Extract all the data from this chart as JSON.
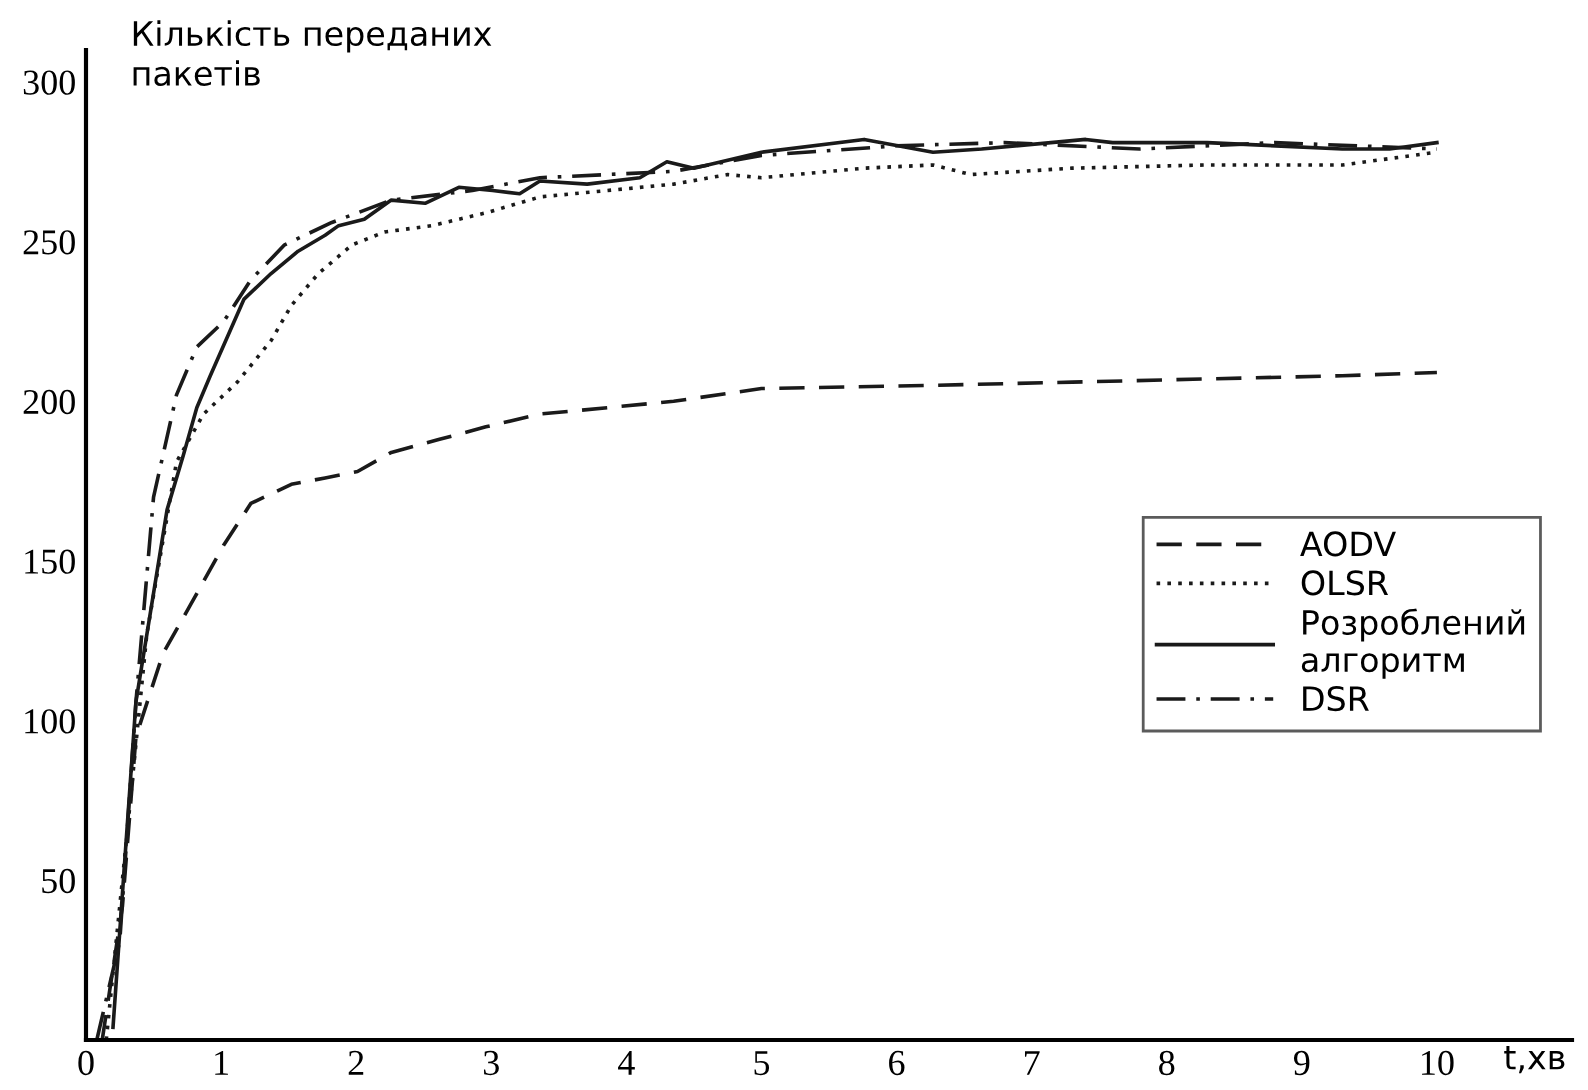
{
  "chart_data": {
    "type": "line",
    "xlabel": "t,хв",
    "ylabel": "Кількість переданих\nпакетів",
    "xlim": [
      0,
      11
    ],
    "ylim": [
      0,
      310
    ],
    "xticks": [
      0,
      1,
      2,
      3,
      4,
      5,
      6,
      7,
      8,
      9,
      10
    ],
    "yticks": [
      50,
      100,
      150,
      200,
      250,
      300
    ],
    "grid": false,
    "legend": "right",
    "marker": "none",
    "series": [
      {
        "name": "AODV",
        "color": "#1a1a1a",
        "line_style": "dashed",
        "x": [
          0.12,
          0.27,
          0.37,
          0.57,
          0.77,
          1.02,
          1.22,
          1.52,
          1.77,
          2.01,
          2.26,
          2.61,
          2.96,
          3.36,
          3.86,
          4.35,
          5,
          6.27,
          7.3,
          8.3,
          9.3,
          10
        ],
        "values": [
          0,
          42,
          95,
          121,
          136,
          155,
          168,
          174,
          176,
          178,
          184,
          188,
          192,
          196,
          198,
          200,
          204,
          205,
          206,
          207,
          208,
          209
        ]
      },
      {
        "name": "OLSR",
        "color": "#1a1a1a",
        "line_style": "dotted",
        "x": [
          0.15,
          0.3,
          0.45,
          0.67,
          0.87,
          1.12,
          1.37,
          1.52,
          1.72,
          1.97,
          2.21,
          2.56,
          2.96,
          3.36,
          3.86,
          4.35,
          4.75,
          5,
          5.76,
          6.27,
          6.55,
          7.3,
          8.3,
          9.3,
          10
        ],
        "values": [
          0,
          63,
          127,
          181,
          196,
          206,
          219,
          230,
          240,
          249,
          253,
          255,
          259,
          264,
          266,
          268,
          271,
          270,
          273,
          274,
          271,
          273,
          274,
          274,
          278
        ]
      },
      {
        "name": "Розроблений\nалгоритм",
        "color": "#1a1a1a",
        "line_style": "solid",
        "x": [
          0.2,
          0.37,
          0.6,
          0.72,
          0.82,
          0.92,
          1.17,
          1.37,
          1.57,
          1.77,
          1.87,
          2.06,
          2.26,
          2.51,
          2.76,
          3.01,
          3.21,
          3.36,
          3.71,
          4.1,
          4.3,
          4.5,
          5,
          5.76,
          6.27,
          6.63,
          7.4,
          7.6,
          8.3,
          9.3,
          9.65,
          10
        ],
        "values": [
          4,
          106,
          166,
          183,
          198,
          208,
          232,
          240,
          247,
          252,
          255,
          257,
          263,
          262,
          267,
          266,
          265,
          269,
          268,
          270,
          275,
          273,
          278,
          282,
          278,
          279,
          282,
          281,
          281,
          279,
          279,
          281
        ]
      },
      {
        "name": "DSR",
        "color": "#1a1a1a",
        "line_style": "dashdot",
        "x": [
          0.08,
          0.25,
          0.37,
          0.5,
          0.67,
          0.82,
          1.02,
          1.22,
          1.47,
          1.82,
          2.26,
          2.86,
          3.36,
          4.35,
          5,
          6,
          6.8,
          7.8,
          8.8,
          10
        ],
        "values": [
          0,
          31,
          106,
          170,
          202,
          217,
          225,
          238,
          249,
          256,
          263,
          266,
          270,
          272,
          277,
          280,
          281,
          279,
          281,
          279
        ]
      }
    ]
  }
}
